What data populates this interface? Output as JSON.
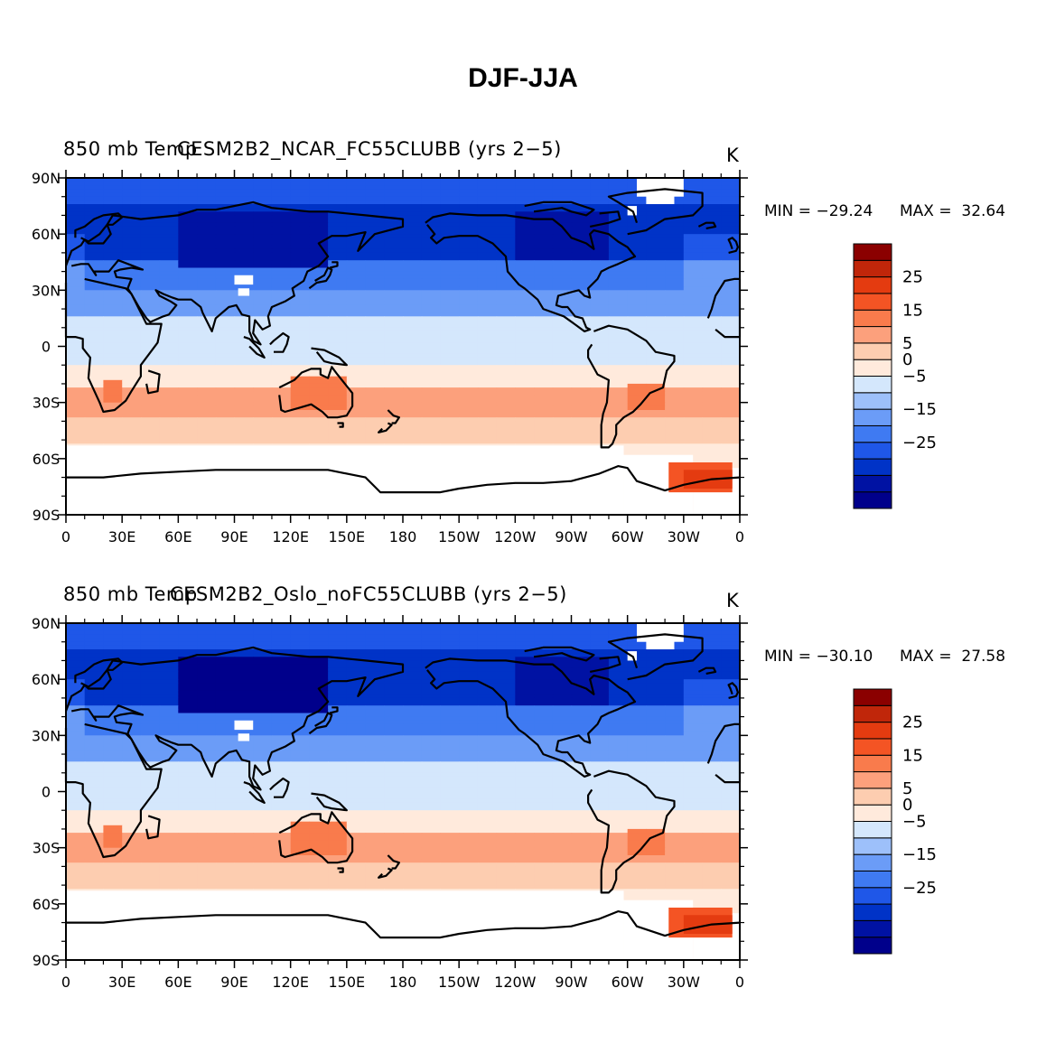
{
  "title": "DJF-JJA",
  "colors": {
    "levels": [
      "#00008b",
      "#0012a3",
      "#0033c7",
      "#1f57e8",
      "#3f7af2",
      "#6b9cf7",
      "#9dc0fa",
      "#d4e7fc",
      "#ffeadc",
      "#fdcdb0",
      "#fca07c",
      "#f97b4c",
      "#f45424",
      "#e43b10",
      "#c0260a",
      "#8b0000"
    ],
    "coast": "#000000",
    "missing": "#ffffff"
  },
  "chart_data": [
    {
      "type": "heatmap",
      "name": "top",
      "title_left": "850 mb Temp",
      "title_center": "CESM2B2_NCAR_FC55CLUBB (yrs 2−5)",
      "units": "K",
      "min_label": "MIN = −29.24",
      "max_label": "MAX =  32.64",
      "min": -29.24,
      "max": 32.64,
      "x_ticks": [
        "0",
        "30E",
        "60E",
        "90E",
        "120E",
        "150E",
        "180",
        "150W",
        "120W",
        "90W",
        "60W",
        "30W",
        "0"
      ],
      "y_ticks": [
        "90N",
        "60N",
        "30N",
        "0",
        "30S",
        "60S",
        "90S"
      ],
      "lon_range": [
        0,
        360
      ],
      "lat_range": [
        -90,
        90
      ],
      "colorbar_labels": [
        "25",
        "15",
        "5",
        "0",
        "−5",
        "−15",
        "−25"
      ]
    },
    {
      "type": "heatmap",
      "name": "bottom",
      "title_left": "850 mb Temp",
      "title_center": "CESM2B2_Oslo_noFC55CLUBB (yrs 2−5)",
      "units": "K",
      "min_label": "MIN = −30.10",
      "max_label": "MAX =  27.58",
      "min": -30.1,
      "max": 27.58,
      "x_ticks": [
        "0",
        "30E",
        "60E",
        "90E",
        "120E",
        "150E",
        "180",
        "150W",
        "120W",
        "90W",
        "60W",
        "30W",
        "0"
      ],
      "y_ticks": [
        "90N",
        "60N",
        "30N",
        "0",
        "30S",
        "60S",
        "90S"
      ],
      "lon_range": [
        0,
        360
      ],
      "lat_range": [
        -90,
        90
      ],
      "colorbar_labels": [
        "25",
        "15",
        "5",
        "0",
        "−5",
        "−15",
        "−25"
      ]
    }
  ]
}
